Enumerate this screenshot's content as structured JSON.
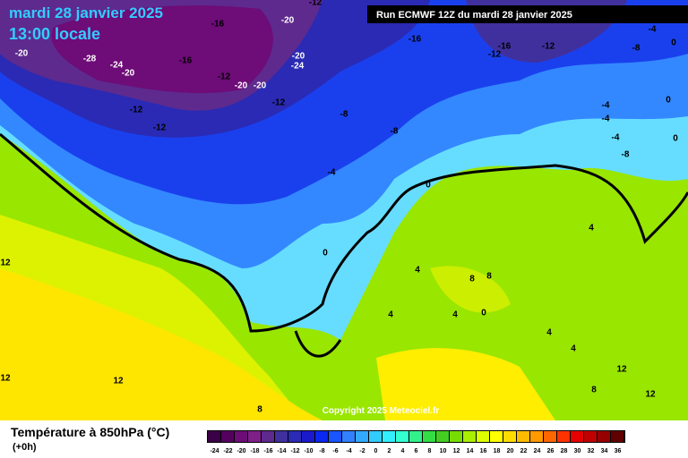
{
  "header": {
    "title": "mardi 28 janvier 2025",
    "time": "13:00 locale",
    "run": "Run ECMWF 12Z du mardi 28 janvier 2025"
  },
  "map": {
    "copyright": "Copyright 2025 Meteociel.fr",
    "labels": [
      -12,
      -16,
      -20,
      -20,
      -28,
      -24,
      -20,
      -16,
      -20,
      -24,
      -12,
      -20,
      -20,
      -12,
      -12,
      -12,
      -8,
      -8,
      -4,
      -16,
      -16,
      -12,
      -12,
      -4,
      -8,
      0,
      0,
      -4,
      -4,
      -4,
      0,
      -8,
      0,
      0,
      4,
      4,
      8,
      8,
      4,
      4,
      0,
      4,
      4,
      8,
      12,
      12,
      12,
      12,
      12,
      8
    ]
  },
  "footer": {
    "variable": "Température à 850hPa (°C)",
    "step": "(+0h)"
  },
  "legend": {
    "ticks": [
      -24,
      -22,
      -20,
      -18,
      -16,
      -14,
      -12,
      -10,
      -8,
      -6,
      -4,
      -2,
      0,
      2,
      4,
      6,
      8,
      10,
      12,
      14,
      16,
      18,
      20,
      22,
      24,
      26,
      28,
      30,
      32,
      34,
      36
    ],
    "colors": [
      "#3a0046",
      "#55005e",
      "#6e0c78",
      "#7e2088",
      "#5e2a8e",
      "#40309e",
      "#2a2ab4",
      "#1a1acc",
      "#0a28f0",
      "#1a55ff",
      "#3380ff",
      "#33aaff",
      "#33ccff",
      "#33eeff",
      "#33ffd0",
      "#33f08a",
      "#33dd44",
      "#44cc22",
      "#77dd00",
      "#aaee00",
      "#ddff00",
      "#ffff00",
      "#ffdd00",
      "#ffbb00",
      "#ff9900",
      "#ff6600",
      "#ff3300",
      "#e60000",
      "#c00000",
      "#960000",
      "#600000"
    ]
  }
}
